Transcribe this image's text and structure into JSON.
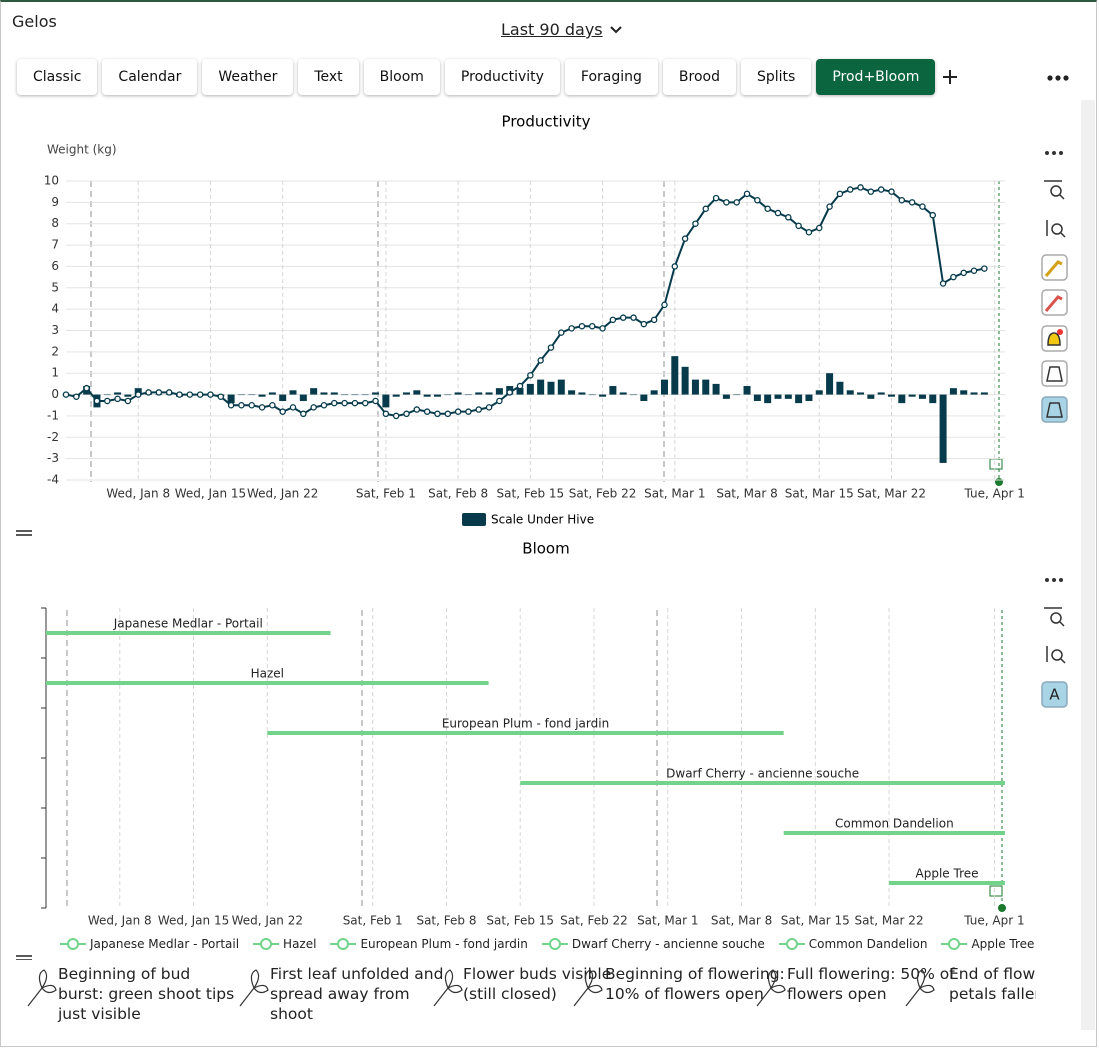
{
  "header": {
    "title": "Gelos",
    "range": "Last 90 days"
  },
  "tabs": [
    "Classic",
    "Calendar",
    "Weather",
    "Text",
    "Bloom",
    "Productivity",
    "Foraging",
    "Brood",
    "Splits",
    "Prod+Bloom"
  ],
  "active_tab": "Prod+Bloom",
  "chart_data": [
    {
      "type": "bar-line",
      "title": "Productivity",
      "y_label": "Weight (kg)",
      "x": [
        "Jan 1",
        "Jan 2",
        "Jan 3",
        "Jan 4",
        "Jan 5",
        "Jan 6",
        "Jan 7",
        "Jan 8",
        "Jan 9",
        "Jan 10",
        "Jan 11",
        "Jan 12",
        "Jan 13",
        "Jan 14",
        "Jan 15",
        "Jan 16",
        "Jan 17",
        "Jan 18",
        "Jan 19",
        "Jan 20",
        "Jan 21",
        "Jan 22",
        "Jan 23",
        "Jan 24",
        "Jan 25",
        "Jan 26",
        "Jan 27",
        "Jan 28",
        "Jan 29",
        "Jan 30",
        "Jan 31",
        "Feb 1",
        "Feb 2",
        "Feb 3",
        "Feb 4",
        "Feb 5",
        "Feb 6",
        "Feb 7",
        "Feb 8",
        "Feb 9",
        "Feb 10",
        "Feb 11",
        "Feb 12",
        "Feb 13",
        "Feb 14",
        "Feb 15",
        "Feb 16",
        "Feb 17",
        "Feb 18",
        "Feb 19",
        "Feb 20",
        "Feb 21",
        "Feb 22",
        "Feb 23",
        "Feb 24",
        "Feb 25",
        "Feb 26",
        "Feb 27",
        "Feb 28",
        "Mar 1",
        "Mar 2",
        "Mar 3",
        "Mar 4",
        "Mar 5",
        "Mar 6",
        "Mar 7",
        "Mar 8",
        "Mar 9",
        "Mar 10",
        "Mar 11",
        "Mar 12",
        "Mar 13",
        "Mar 14",
        "Mar 15",
        "Mar 16",
        "Mar 17",
        "Mar 18",
        "Mar 19",
        "Mar 20",
        "Mar 21",
        "Mar 22",
        "Mar 23",
        "Mar 24",
        "Mar 25",
        "Mar 26",
        "Mar 27",
        "Mar 28",
        "Mar 29",
        "Mar 30",
        "Mar 31",
        "Apr 1",
        "Apr 2"
      ],
      "series": [
        {
          "name": "Scale Under Hive",
          "color": "#073b4c",
          "values": [
            0,
            -0.1,
            0.4,
            -0.6,
            0,
            0.1,
            -0.1,
            0.3,
            0.1,
            0,
            0,
            -0.1,
            0,
            0,
            0,
            -0.1,
            -0.4,
            0,
            0,
            -0.1,
            0.1,
            -0.3,
            0.2,
            -0.3,
            0.3,
            0.1,
            0.1,
            0,
            0,
            0,
            0.1,
            -0.6,
            -0.1,
            0.1,
            0.2,
            -0.1,
            -0.1,
            0,
            0.1,
            0,
            0.1,
            0.1,
            0.3,
            0.4,
            0.3,
            0.5,
            0.7,
            0.6,
            0.7,
            0.2,
            0.1,
            0,
            -0.1,
            0.4,
            0.1,
            0,
            -0.3,
            0.2,
            0.7,
            1.8,
            1.3,
            0.7,
            0.7,
            0.5,
            -0.2,
            0,
            0.4,
            -0.3,
            -0.4,
            -0.2,
            -0.2,
            -0.4,
            -0.3,
            0.2,
            1.0,
            0.6,
            0.2,
            0.1,
            -0.2,
            0.1,
            -0.1,
            -0.4,
            -0.1,
            -0.2,
            -0.4,
            -3.2,
            0.3,
            0.2,
            0.1,
            0.1,
            null,
            null
          ]
        }
      ],
      "line": {
        "color": "#073b4c",
        "values": [
          0,
          -0.1,
          0.3,
          -0.3,
          -0.3,
          -0.2,
          -0.3,
          0,
          0.1,
          0.1,
          0.1,
          0,
          0,
          0,
          0,
          -0.1,
          -0.5,
          -0.5,
          -0.5,
          -0.6,
          -0.5,
          -0.8,
          -0.6,
          -0.9,
          -0.6,
          -0.5,
          -0.4,
          -0.4,
          -0.4,
          -0.4,
          -0.3,
          -0.9,
          -1.0,
          -0.9,
          -0.7,
          -0.8,
          -0.9,
          -0.9,
          -0.8,
          -0.8,
          -0.7,
          -0.6,
          -0.3,
          0.1,
          0.4,
          0.9,
          1.6,
          2.2,
          2.9,
          3.1,
          3.2,
          3.2,
          3.1,
          3.5,
          3.6,
          3.6,
          3.3,
          3.5,
          4.2,
          6.0,
          7.3,
          8.0,
          8.7,
          9.2,
          9.0,
          9.0,
          9.4,
          9.1,
          8.7,
          8.5,
          8.3,
          7.9,
          7.6,
          7.8,
          8.8,
          9.4,
          9.6,
          9.7,
          9.5,
          9.6,
          9.5,
          9.1,
          9.0,
          8.8,
          8.4,
          5.2,
          5.5,
          5.7,
          5.8,
          5.9,
          null,
          null
        ]
      },
      "xlim": [
        "Jan 1",
        "Apr 2"
      ],
      "xticks": [
        {
          "value": "Jan 8",
          "label": "Wed, Jan 8"
        },
        {
          "value": "Jan 15",
          "label": "Wed, Jan 15"
        },
        {
          "value": "Jan 22",
          "label": "Wed, Jan 22"
        },
        {
          "value": "Feb 1",
          "label": "Sat, Feb 1"
        },
        {
          "value": "Feb 8",
          "label": "Sat, Feb 8"
        },
        {
          "value": "Feb 15",
          "label": "Sat, Feb 15"
        },
        {
          "value": "Feb 22",
          "label": "Sat, Feb 22"
        },
        {
          "value": "Mar 1",
          "label": "Sat, Mar 1"
        },
        {
          "value": "Mar 8",
          "label": "Sat, Mar 8"
        },
        {
          "value": "Mar 15",
          "label": "Sat, Mar 15"
        },
        {
          "value": "Mar 22",
          "label": "Sat, Mar 22"
        },
        {
          "value": "Apr 1",
          "label": "Tue, Apr 1"
        }
      ],
      "ylim": [
        -4,
        10
      ],
      "yticks": [
        10,
        9,
        8,
        7,
        6,
        5,
        4,
        3,
        2,
        1,
        0,
        -1,
        -2,
        -3,
        -4
      ],
      "grid": true,
      "legend": "bottom"
    },
    {
      "type": "gantt",
      "title": "Bloom",
      "toolbar_label": "A",
      "series": [
        {
          "name": "Japanese Medlar - Portail",
          "color": "#72d38a",
          "start": "Jan 1",
          "end": "Jan 28"
        },
        {
          "name": "Hazel",
          "color": "#72d38a",
          "start": "Jan 1",
          "end": "Feb 12"
        },
        {
          "name": "European Plum - fond jardin",
          "color": "#72d38a",
          "start": "Jan 22",
          "end": "Mar 12"
        },
        {
          "name": "Dwarf Cherry - ancienne souche",
          "color": "#72d38a",
          "start": "Feb 15",
          "end": "Apr 2"
        },
        {
          "name": "Common Dandelion",
          "color": "#72d38a",
          "start": "Mar 12",
          "end": "Apr 2"
        },
        {
          "name": "Apple Tree",
          "color": "#72d38a",
          "start": "Mar 22",
          "end": "Apr 2"
        }
      ],
      "xlim": [
        "Jan 1",
        "Apr 2"
      ],
      "xticks": [
        {
          "value": "Jan 8",
          "label": "Wed, Jan 8"
        },
        {
          "value": "Jan 15",
          "label": "Wed, Jan 15"
        },
        {
          "value": "Jan 22",
          "label": "Wed, Jan 22"
        },
        {
          "value": "Feb 1",
          "label": "Sat, Feb 1"
        },
        {
          "value": "Feb 8",
          "label": "Sat, Feb 8"
        },
        {
          "value": "Feb 15",
          "label": "Sat, Feb 15"
        },
        {
          "value": "Feb 22",
          "label": "Sat, Feb 22"
        },
        {
          "value": "Mar 1",
          "label": "Sat, Mar 1"
        },
        {
          "value": "Mar 8",
          "label": "Sat, Mar 8"
        },
        {
          "value": "Mar 15",
          "label": "Sat, Mar 15"
        },
        {
          "value": "Mar 22",
          "label": "Sat, Mar 22"
        },
        {
          "value": "Apr 1",
          "label": "Tue, Apr 1"
        }
      ],
      "legend": "bottom"
    }
  ],
  "phenology_legend": [
    "Beginning of bud burst: green shoot tips just visible",
    "First leaf unfolded and spread away from shoot",
    "Flower buds visible (still closed)",
    "Beginning of flowering: 10% of flowers open",
    "Full flowering: 50% of flowers open",
    "End of flowering: all petals fallen"
  ]
}
